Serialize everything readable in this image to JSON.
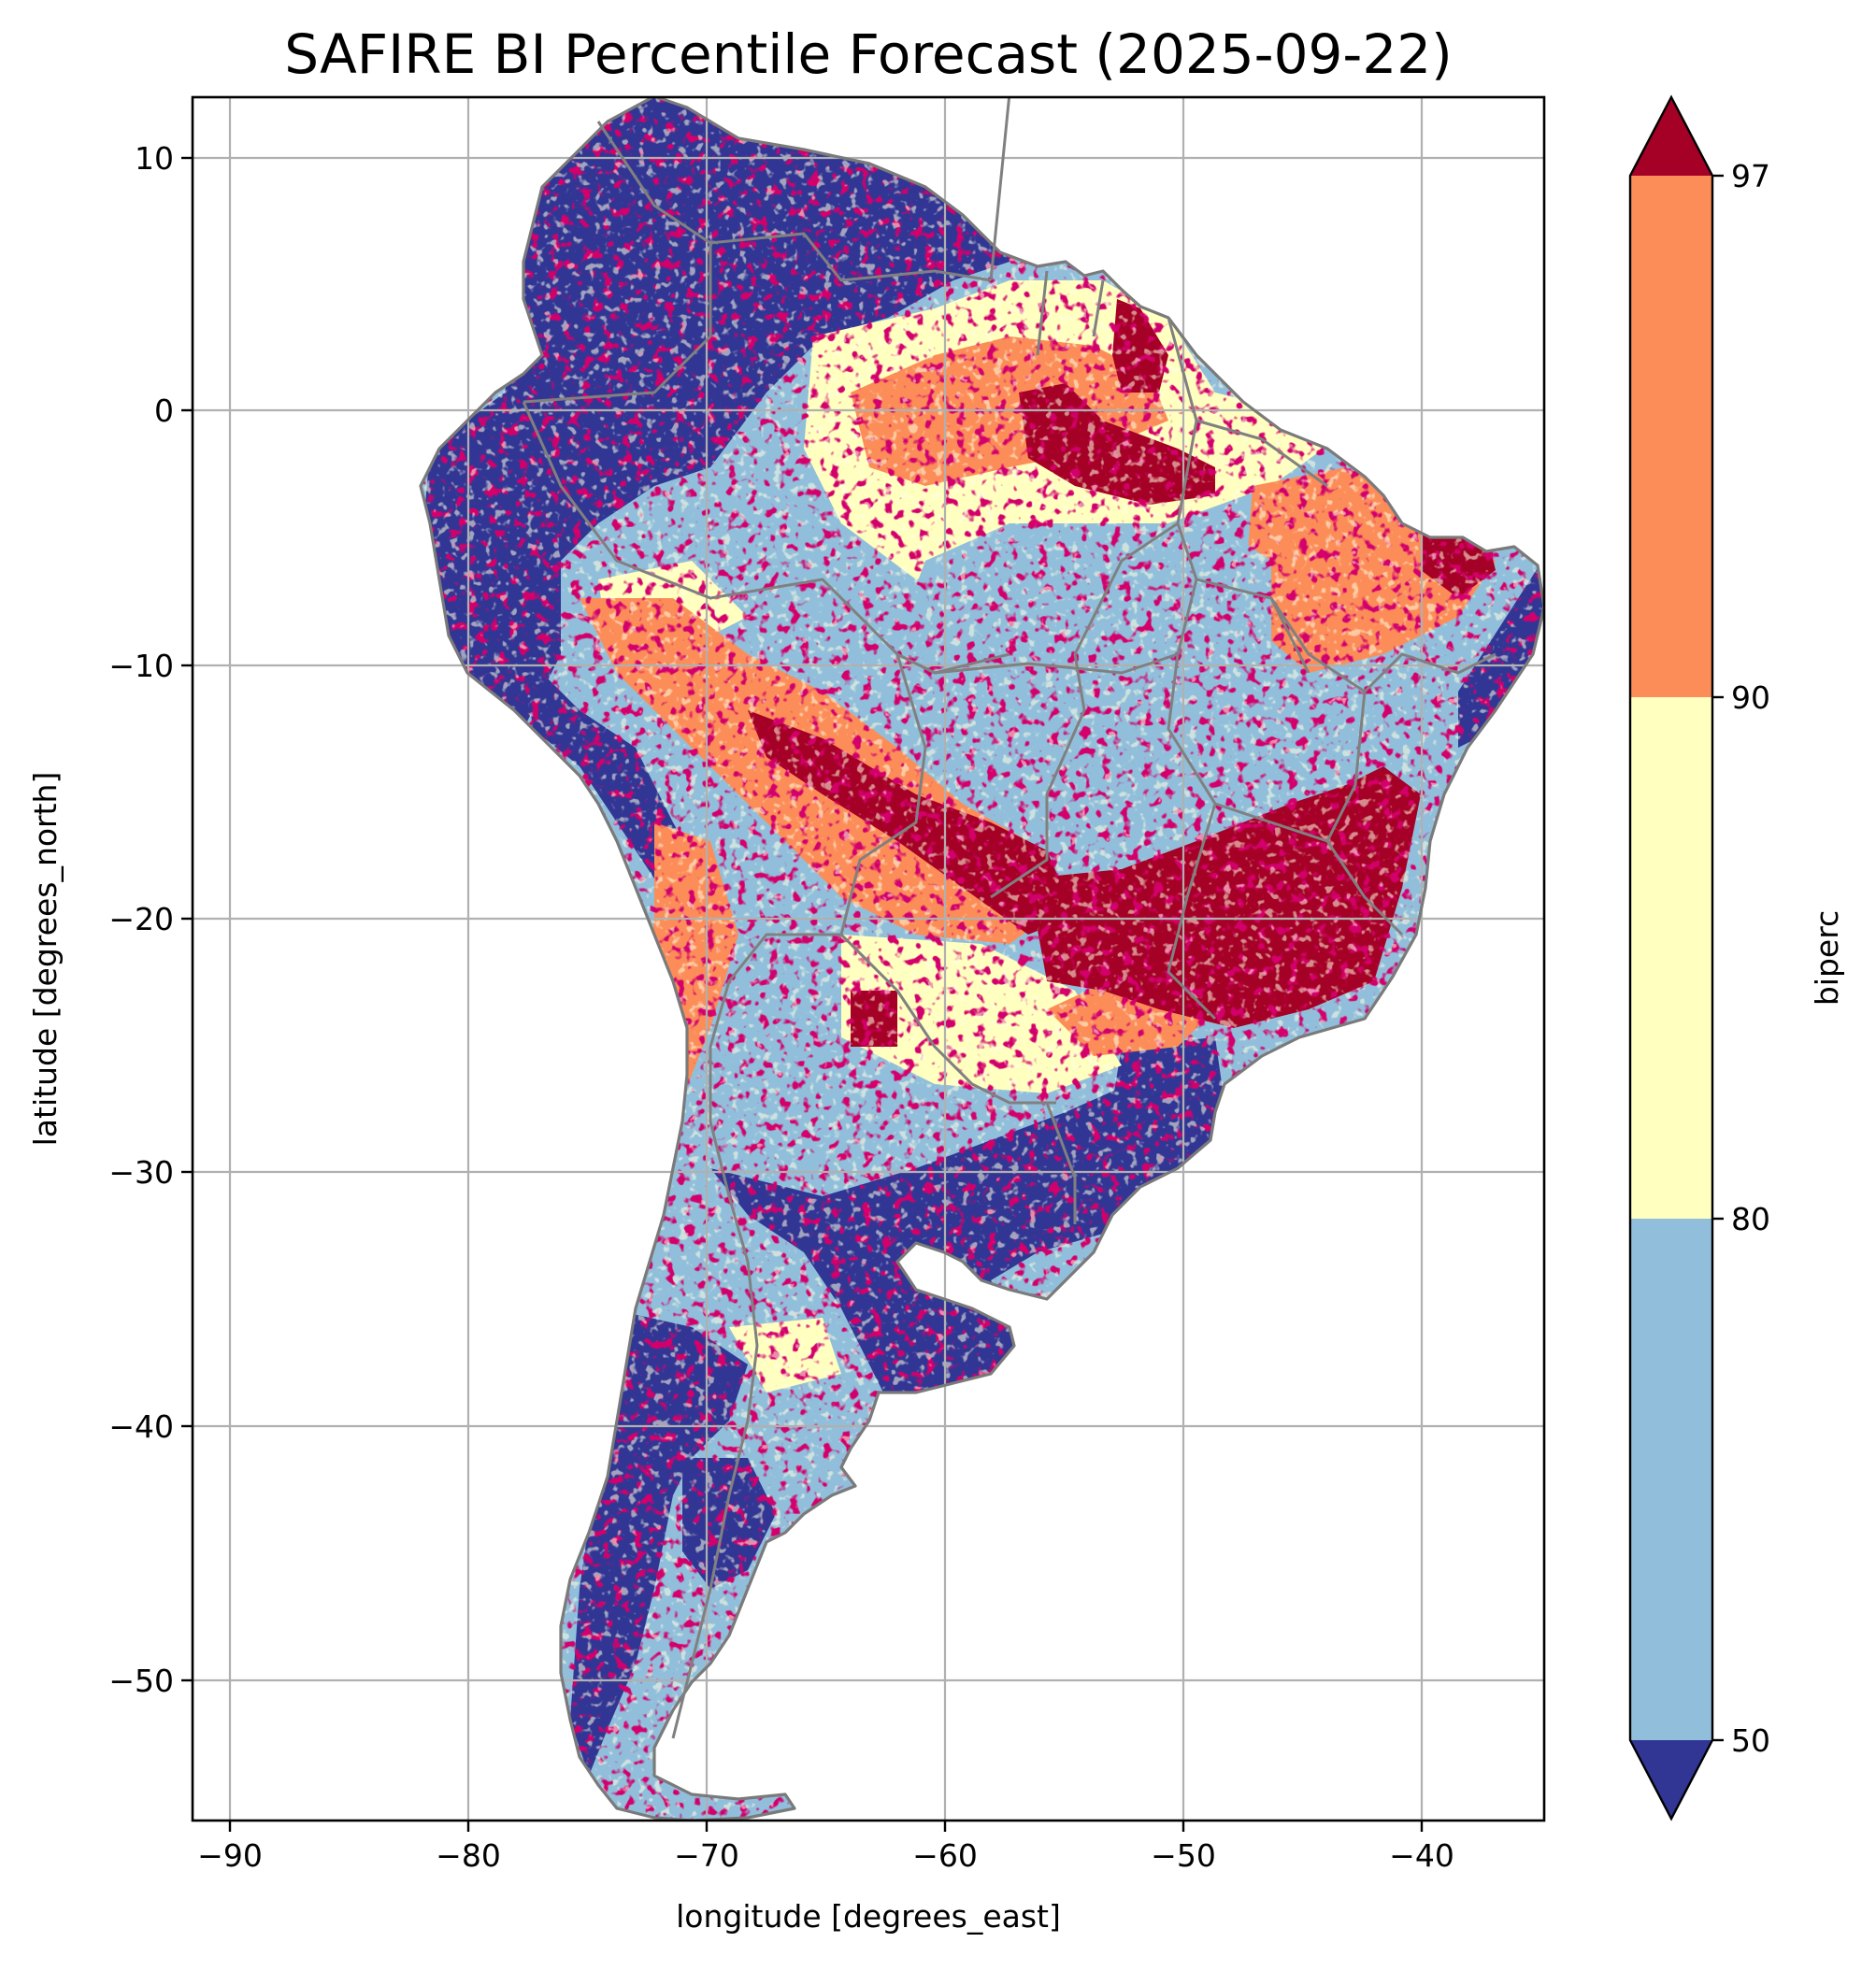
{
  "title": "SAFIRE BI Percentile Forecast (2025-09-22)",
  "xlabel": "longitude [degrees_east]",
  "ylabel": "latitude [degrees_north]",
  "x_ticks": [
    "−90",
    "−80",
    "−70",
    "−60",
    "−50",
    "−40"
  ],
  "y_ticks": [
    "10",
    "0",
    "−10",
    "−20",
    "−30",
    "−40",
    "−50"
  ],
  "colorbar": {
    "label": "biperc",
    "ticks": [
      "97",
      "90",
      "80",
      "50"
    ],
    "colors": {
      "below_50": "#313695",
      "50_80": "#91bfdb",
      "80_90": "#ffffbf",
      "90_97": "#fc8d59",
      "above_97": "#a50026"
    }
  },
  "map_data": {
    "type": "raster-map",
    "region": "South America",
    "lon_range": [
      -91.6,
      -35.1
    ],
    "lat_range": [
      -55.9,
      12.4
    ],
    "grid": true,
    "levels": [
      50,
      80,
      90,
      97
    ],
    "extend": "both"
  }
}
